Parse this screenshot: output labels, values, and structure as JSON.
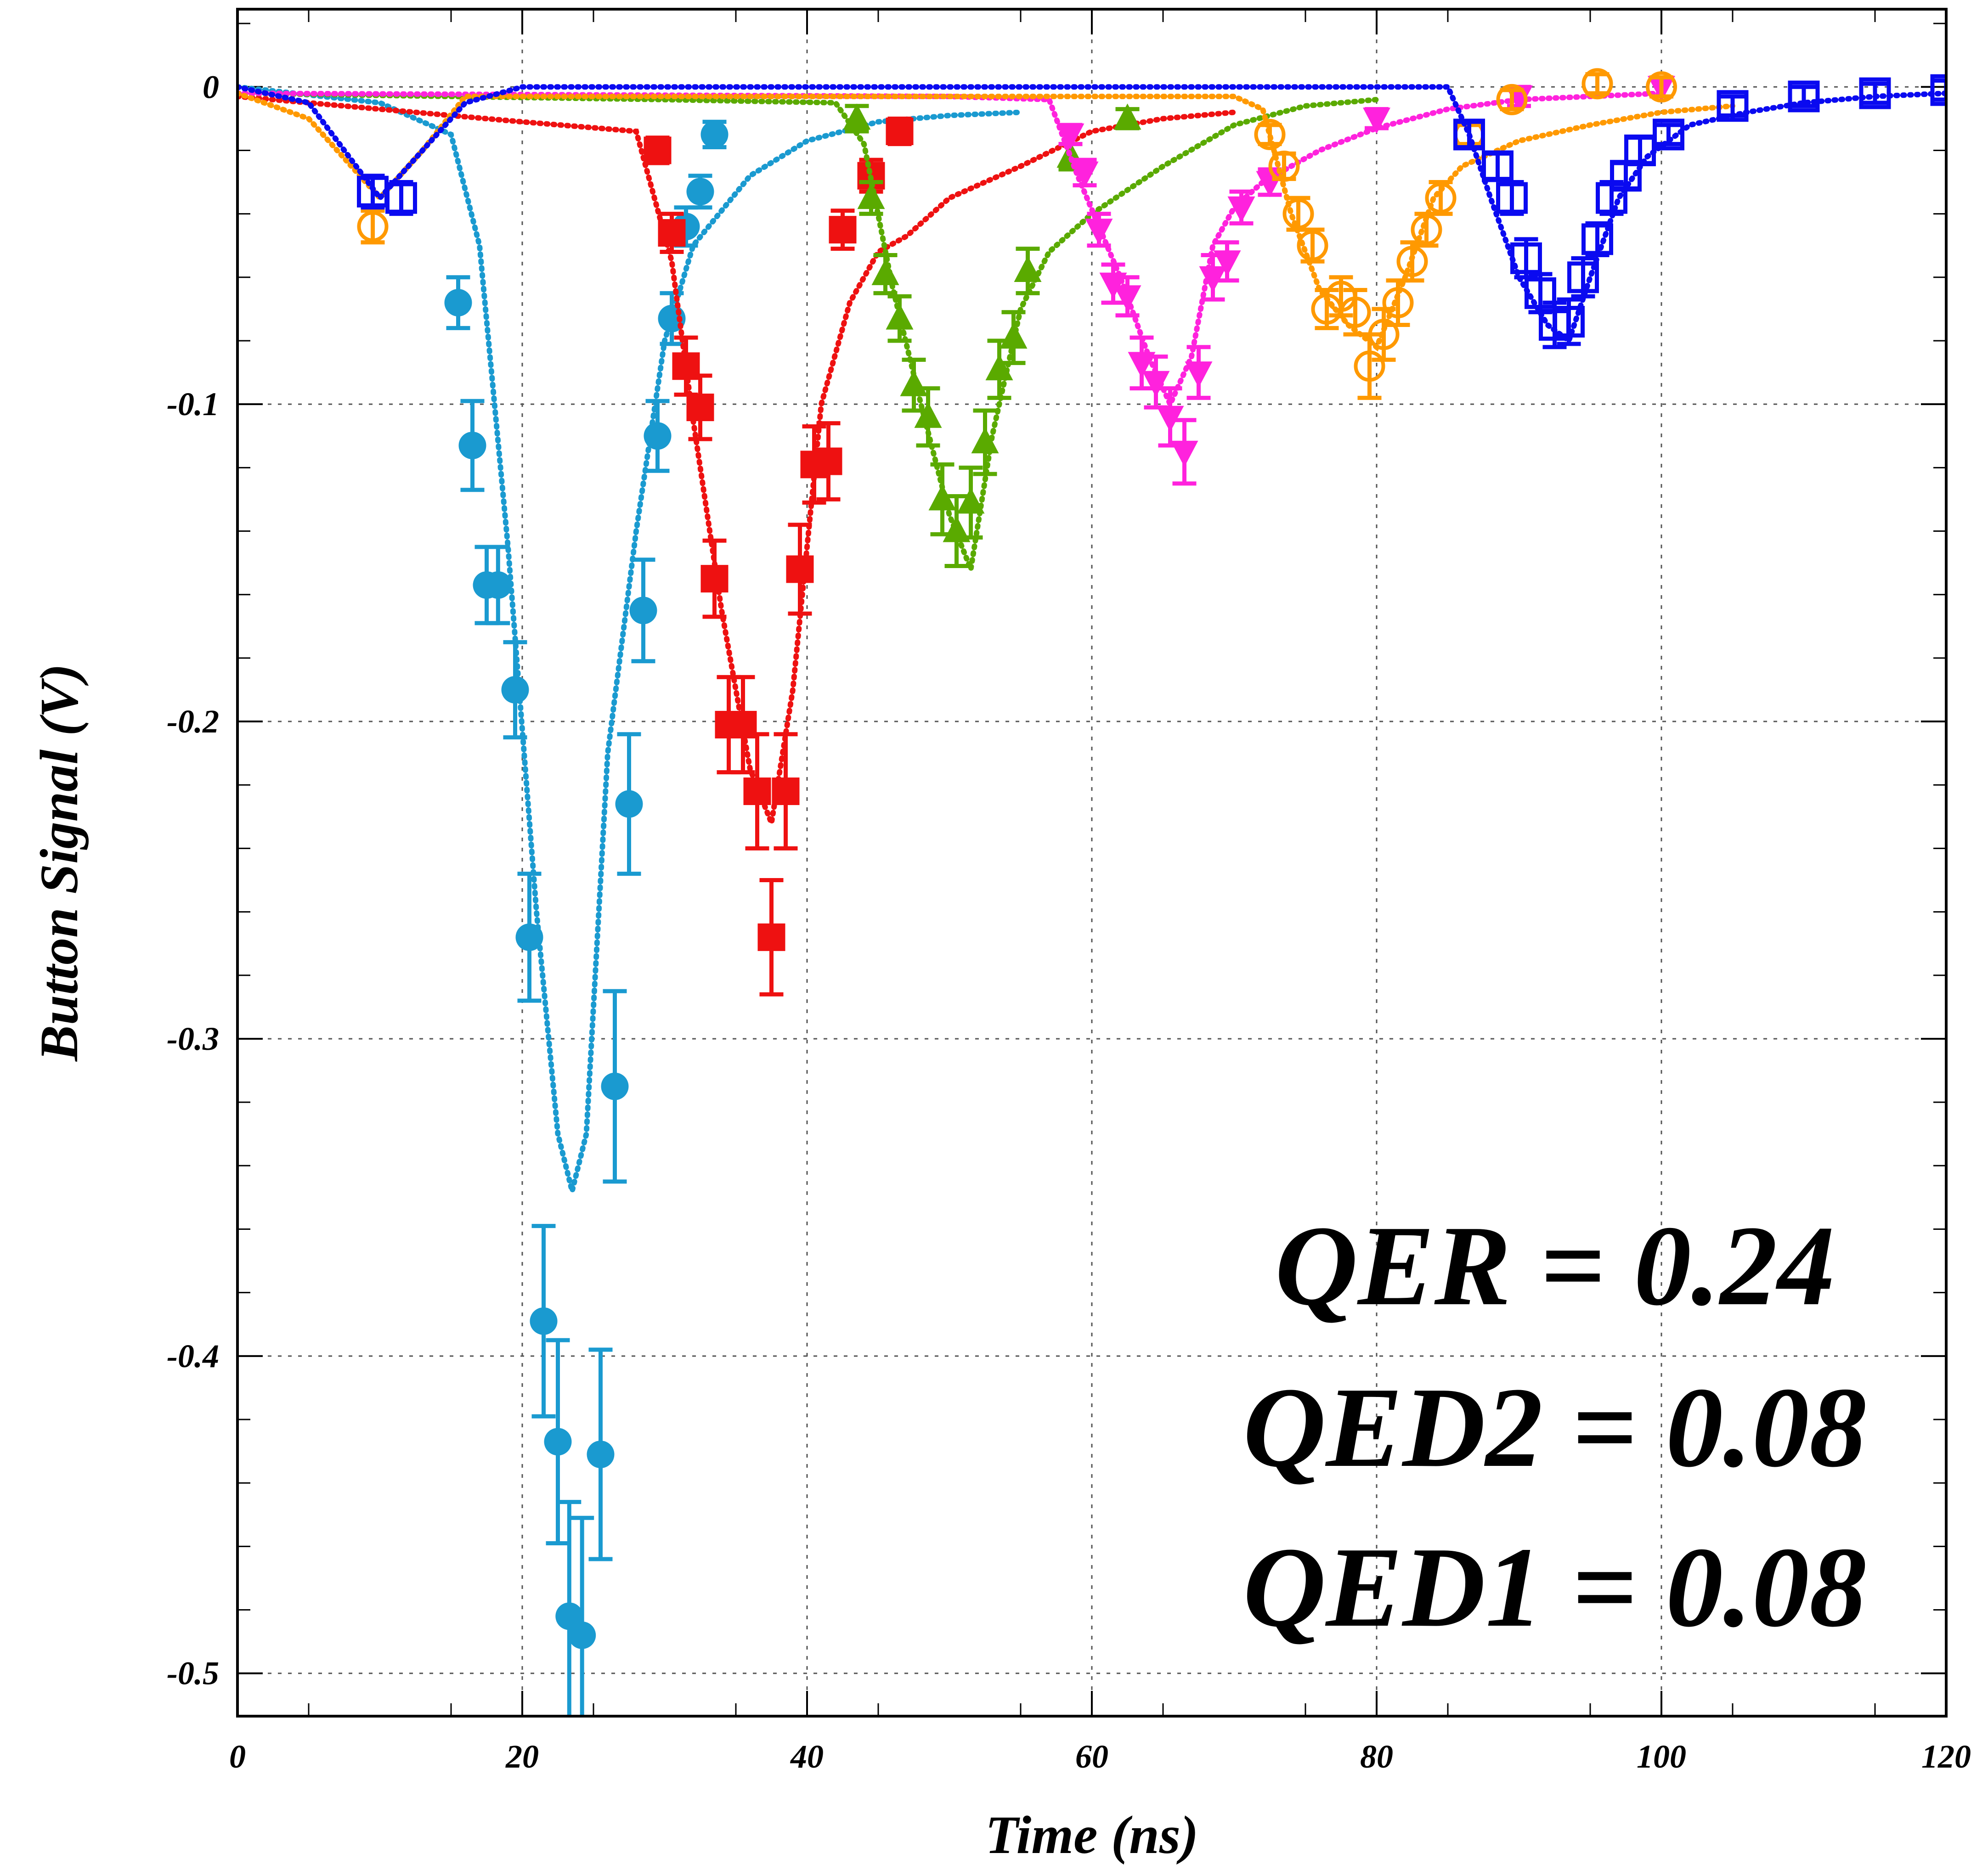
{
  "chart_data": {
    "type": "scatter",
    "title": "",
    "xlabel": "Time (ns)",
    "ylabel": "Button Signal (V)",
    "xlim": [
      0,
      120
    ],
    "ylim": [
      -0.5135,
      0.0245
    ],
    "xticks": [
      0,
      20,
      40,
      60,
      80,
      100,
      120
    ],
    "yticks": [
      0,
      -0.1,
      -0.2,
      -0.3,
      -0.4,
      -0.5
    ],
    "xtick_labels": [
      "0",
      "20",
      "40",
      "60",
      "80",
      "100",
      "120"
    ],
    "ytick_labels": [
      "0",
      "-0.1",
      "-0.2",
      "-0.3",
      "-0.4",
      "-0.5"
    ],
    "grid": true,
    "annotations": [
      "QER = 0.24",
      "QED2 = 0.08",
      "QED1 = 0.08"
    ],
    "series": [
      {
        "color": "#1a9ad0",
        "marker": "circle-filled",
        "points": [
          [
            15.5,
            -0.068,
            0.008
          ],
          [
            16.5,
            -0.113,
            0.014
          ],
          [
            17.5,
            -0.157,
            0.012
          ],
          [
            18.3,
            -0.157,
            0.012
          ],
          [
            19.5,
            -0.19,
            0.015
          ],
          [
            20.5,
            -0.268,
            0.02
          ],
          [
            21.5,
            -0.389,
            0.03
          ],
          [
            22.5,
            -0.427,
            0.032
          ],
          [
            23.3,
            -0.482,
            0.036
          ],
          [
            24.2,
            -0.488,
            0.037
          ],
          [
            25.5,
            -0.431,
            0.033
          ],
          [
            26.5,
            -0.315,
            0.03
          ],
          [
            27.5,
            -0.226,
            0.022
          ],
          [
            28.5,
            -0.165,
            0.016
          ],
          [
            29.5,
            -0.11,
            0.011
          ],
          [
            30.5,
            -0.073,
            0.008
          ],
          [
            31.5,
            -0.044,
            0.006
          ],
          [
            32.5,
            -0.033,
            0.005
          ],
          [
            33.5,
            -0.015,
            0.004
          ]
        ],
        "fit": [
          [
            0,
            0
          ],
          [
            10,
            -0.005
          ],
          [
            15,
            -0.015
          ],
          [
            17,
            -0.05
          ],
          [
            19,
            -0.145
          ],
          [
            21,
            -0.26
          ],
          [
            22.5,
            -0.33
          ],
          [
            23.5,
            -0.348
          ],
          [
            24.5,
            -0.33
          ],
          [
            26,
            -0.21
          ],
          [
            28,
            -0.14
          ],
          [
            30,
            -0.08
          ],
          [
            32,
            -0.05
          ],
          [
            36,
            -0.028
          ],
          [
            40,
            -0.017
          ],
          [
            45,
            -0.011
          ],
          [
            50,
            -0.009
          ],
          [
            55,
            -0.008
          ]
        ]
      },
      {
        "color": "#ee1111",
        "marker": "square-filled",
        "points": [
          [
            29.5,
            -0.02,
            0.004
          ],
          [
            30.5,
            -0.046,
            0.006
          ],
          [
            31.5,
            -0.088,
            0.009
          ],
          [
            32.5,
            -0.101,
            0.01
          ],
          [
            33.5,
            -0.155,
            0.012
          ],
          [
            34.5,
            -0.201,
            0.015
          ],
          [
            35.5,
            -0.201,
            0.015
          ],
          [
            36.5,
            -0.222,
            0.018
          ],
          [
            37.5,
            -0.268,
            0.018
          ],
          [
            38.5,
            -0.222,
            0.018
          ],
          [
            39.5,
            -0.152,
            0.014
          ],
          [
            40.5,
            -0.119,
            0.012
          ],
          [
            41.5,
            -0.118,
            0.012
          ],
          [
            42.5,
            -0.045,
            0.006
          ],
          [
            44.5,
            -0.028,
            0.005
          ],
          [
            46.5,
            -0.014,
            0.004
          ]
        ],
        "fit": [
          [
            0,
            -0.003
          ],
          [
            20,
            -0.011
          ],
          [
            28,
            -0.014
          ],
          [
            30.5,
            -0.055
          ],
          [
            32,
            -0.105
          ],
          [
            34,
            -0.165
          ],
          [
            36,
            -0.215
          ],
          [
            37.5,
            -0.232
          ],
          [
            39,
            -0.19
          ],
          [
            41,
            -0.1
          ],
          [
            43,
            -0.068
          ],
          [
            45,
            -0.052
          ],
          [
            47,
            -0.047
          ],
          [
            50,
            -0.035
          ],
          [
            55,
            -0.025
          ],
          [
            60,
            -0.014
          ],
          [
            65,
            -0.01
          ],
          [
            70,
            -0.008
          ]
        ]
      },
      {
        "color": "#5aaa00",
        "marker": "triangle-up-filled",
        "points": [
          [
            43.5,
            -0.01,
            0.004
          ],
          [
            44.5,
            -0.035,
            0.005
          ],
          [
            45.5,
            -0.059,
            0.006
          ],
          [
            46.5,
            -0.073,
            0.007
          ],
          [
            47.5,
            -0.094,
            0.008
          ],
          [
            48.5,
            -0.104,
            0.009
          ],
          [
            49.5,
            -0.13,
            0.011
          ],
          [
            50.5,
            -0.14,
            0.011
          ],
          [
            51.5,
            -0.131,
            0.011
          ],
          [
            52.5,
            -0.112,
            0.01
          ],
          [
            53.5,
            -0.089,
            0.009
          ],
          [
            54.5,
            -0.079,
            0.008
          ],
          [
            55.5,
            -0.058,
            0.007
          ],
          [
            58.5,
            -0.022,
            0.004
          ],
          [
            62.5,
            -0.01,
            0.003
          ]
        ],
        "fit": [
          [
            0,
            -0.002
          ],
          [
            30,
            -0.004
          ],
          [
            42,
            -0.005
          ],
          [
            44,
            -0.018
          ],
          [
            46,
            -0.063
          ],
          [
            48,
            -0.1
          ],
          [
            50,
            -0.135
          ],
          [
            51.5,
            -0.152
          ],
          [
            53,
            -0.11
          ],
          [
            55,
            -0.07
          ],
          [
            57,
            -0.052
          ],
          [
            60,
            -0.04
          ],
          [
            65,
            -0.025
          ],
          [
            70,
            -0.012
          ],
          [
            75,
            -0.006
          ],
          [
            80,
            -0.004
          ]
        ]
      },
      {
        "color": "#ff22dd",
        "marker": "triangle-down-filled",
        "points": [
          [
            58.5,
            -0.015,
            0.003
          ],
          [
            59.5,
            -0.027,
            0.004
          ],
          [
            60.5,
            -0.045,
            0.005
          ],
          [
            61.5,
            -0.062,
            0.006
          ],
          [
            62.5,
            -0.066,
            0.006
          ],
          [
            63.5,
            -0.087,
            0.008
          ],
          [
            64.5,
            -0.093,
            0.008
          ],
          [
            65.5,
            -0.104,
            0.009
          ],
          [
            66.5,
            -0.115,
            0.01
          ],
          [
            67.5,
            -0.09,
            0.008
          ],
          [
            68.5,
            -0.06,
            0.007
          ],
          [
            69.5,
            -0.055,
            0.006
          ],
          [
            70.5,
            -0.038,
            0.005
          ],
          [
            72.5,
            -0.03,
            0.004
          ],
          [
            80,
            -0.01,
            0.003
          ],
          [
            90,
            -0.003,
            0.003
          ],
          [
            100,
            0,
            0.003
          ]
        ],
        "fit": [
          [
            0,
            -0.002
          ],
          [
            50,
            -0.003
          ],
          [
            57,
            -0.004
          ],
          [
            59,
            -0.028
          ],
          [
            62,
            -0.06
          ],
          [
            64,
            -0.085
          ],
          [
            65.5,
            -0.1
          ],
          [
            67,
            -0.085
          ],
          [
            68.5,
            -0.05
          ],
          [
            70,
            -0.038
          ],
          [
            72,
            -0.03
          ],
          [
            76,
            -0.02
          ],
          [
            80,
            -0.013
          ],
          [
            85,
            -0.007
          ],
          [
            90,
            -0.004
          ],
          [
            100,
            -0.002
          ]
        ]
      },
      {
        "color": "#ff9900",
        "marker": "circle-open",
        "points": [
          [
            9.5,
            -0.044,
            0.005
          ],
          [
            72.5,
            -0.015,
            0.003
          ],
          [
            73.5,
            -0.025,
            0.004
          ],
          [
            74.5,
            -0.04,
            0.005
          ],
          [
            75.5,
            -0.05,
            0.005
          ],
          [
            76.5,
            -0.07,
            0.006
          ],
          [
            77.5,
            -0.066,
            0.006
          ],
          [
            78.5,
            -0.071,
            0.007
          ],
          [
            79.5,
            -0.088,
            0.01
          ],
          [
            80.5,
            -0.078,
            0.008
          ],
          [
            81.5,
            -0.068,
            0.007
          ],
          [
            82.5,
            -0.055,
            0.006
          ],
          [
            83.5,
            -0.045,
            0.005
          ],
          [
            84.5,
            -0.035,
            0.005
          ],
          [
            86.5,
            -0.015,
            0.003
          ],
          [
            89.5,
            -0.004,
            0.003
          ],
          [
            95.5,
            0.001,
            0.003
          ],
          [
            100,
            0,
            0.003
          ]
        ],
        "fit": [
          [
            0,
            -0.002
          ],
          [
            5,
            -0.01
          ],
          [
            10,
            -0.035
          ],
          [
            13,
            -0.02
          ],
          [
            16,
            -0.003
          ],
          [
            70,
            -0.003
          ],
          [
            72,
            -0.007
          ],
          [
            74,
            -0.04
          ],
          [
            76,
            -0.064
          ],
          [
            78,
            -0.075
          ],
          [
            80,
            -0.082
          ],
          [
            82,
            -0.06
          ],
          [
            84,
            -0.035
          ],
          [
            86,
            -0.025
          ],
          [
            90,
            -0.017
          ],
          [
            95,
            -0.012
          ],
          [
            100,
            -0.008
          ],
          [
            105,
            -0.006
          ]
        ]
      },
      {
        "color": "#0a0af0",
        "marker": "square-open",
        "points": [
          [
            9.5,
            -0.033,
            0.005
          ],
          [
            11.5,
            -0.035,
            0.005
          ],
          [
            86.5,
            -0.015,
            0.004
          ],
          [
            88.5,
            -0.025,
            0.004
          ],
          [
            89.5,
            -0.035,
            0.005
          ],
          [
            90.5,
            -0.054,
            0.006
          ],
          [
            91.5,
            -0.065,
            0.006
          ],
          [
            92.5,
            -0.075,
            0.007
          ],
          [
            93.5,
            -0.074,
            0.007
          ],
          [
            94.5,
            -0.06,
            0.006
          ],
          [
            95.5,
            -0.048,
            0.005
          ],
          [
            96.5,
            -0.035,
            0.005
          ],
          [
            97.5,
            -0.028,
            0.004
          ],
          [
            98.5,
            -0.02,
            0.004
          ],
          [
            100.5,
            -0.015,
            0.003
          ],
          [
            105,
            -0.006,
            0.003
          ],
          [
            110,
            -0.003,
            0.003
          ],
          [
            115,
            -0.002,
            0.003
          ],
          [
            120,
            -0.001,
            0.003
          ]
        ],
        "fit": [
          [
            0,
            0
          ],
          [
            5,
            -0.005
          ],
          [
            10,
            -0.035
          ],
          [
            13,
            -0.02
          ],
          [
            16,
            -0.005
          ],
          [
            20,
            0
          ],
          [
            85,
            0
          ],
          [
            86.5,
            -0.015
          ],
          [
            88,
            -0.035
          ],
          [
            90,
            -0.06
          ],
          [
            92,
            -0.075
          ],
          [
            93.5,
            -0.08
          ],
          [
            95,
            -0.06
          ],
          [
            97,
            -0.035
          ],
          [
            99,
            -0.022
          ],
          [
            102,
            -0.012
          ],
          [
            106,
            -0.008
          ],
          [
            110,
            -0.005
          ],
          [
            115,
            -0.003
          ],
          [
            120,
            -0.002
          ]
        ]
      }
    ]
  }
}
